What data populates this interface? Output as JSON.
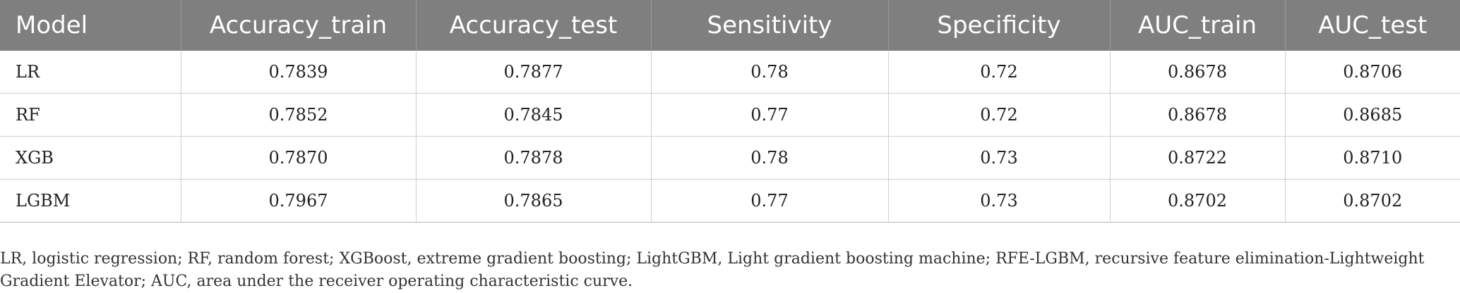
{
  "table": {
    "headers": [
      "Model",
      "Accuracy_train",
      "Accuracy_test",
      "Sensitivity",
      "Specificity",
      "AUC_train",
      "AUC_test"
    ],
    "rows": [
      [
        "LR",
        "0.7839",
        "0.7877",
        "0.78",
        "0.72",
        "0.8678",
        "0.8706"
      ],
      [
        "RF",
        "0.7852",
        "0.7845",
        "0.77",
        "0.72",
        "0.8678",
        "0.8685"
      ],
      [
        "XGB",
        "0.7870",
        "0.7878",
        "0.78",
        "0.73",
        "0.8722",
        "0.8710"
      ],
      [
        "LGBM",
        "0.7967",
        "0.7865",
        "0.77",
        "0.73",
        "0.8702",
        "0.8702"
      ]
    ]
  },
  "footnote": "LR, logistic regression; RF, random forest; XGBoost, extreme gradient boosting; LightGBM, Light gradient boosting machine; RFE-LGBM, recursive feature elimination-Lightweight Gradient Elevator; AUC, area under the receiver operating characteristic curve.",
  "colors": {
    "header_background": "#7f7f7f",
    "header_text": "#ffffff",
    "grid_line": "#cfcfcf"
  }
}
